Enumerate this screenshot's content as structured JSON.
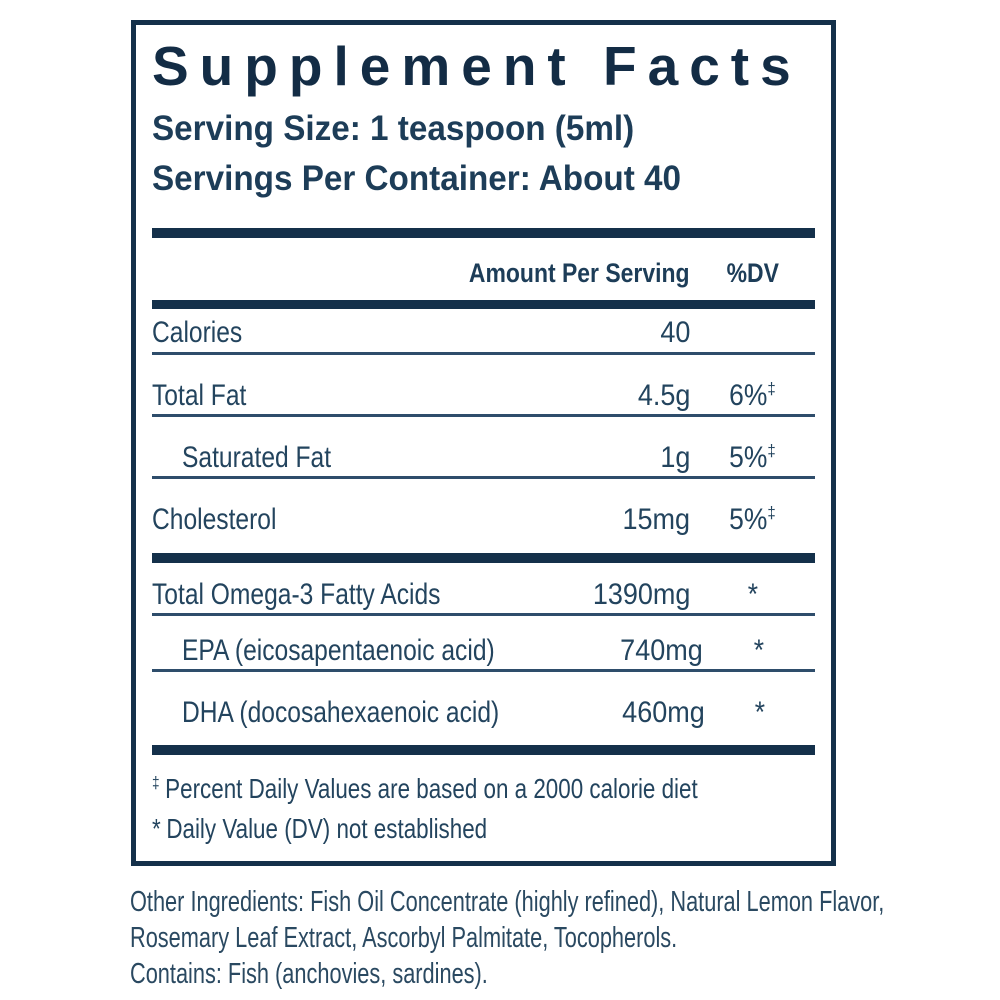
{
  "colors": {
    "ink": "#14304a",
    "text": "#23445e",
    "thin_rule": "#2e4d6b",
    "background": "#ffffff"
  },
  "label": {
    "title": "Supplement Facts",
    "serving_size": "Serving Size: 1 teaspoon (5ml)",
    "servings_per_container": "Servings Per Container: About 40",
    "columns": {
      "amount": "Amount Per Serving",
      "dv": "%DV"
    },
    "rows": [
      {
        "label": "Calories",
        "amount": "40",
        "dv": "",
        "sup": "",
        "indent": false,
        "section": 1
      },
      {
        "label": "Total Fat",
        "amount": "4.5g",
        "dv": "6%",
        "sup": "‡",
        "indent": false,
        "section": 1
      },
      {
        "label": "Saturated Fat",
        "amount": "1g",
        "dv": "5%",
        "sup": "‡",
        "indent": true,
        "section": 1
      },
      {
        "label": "Cholesterol",
        "amount": "15mg",
        "dv": "5%",
        "sup": "‡",
        "indent": false,
        "section": 1
      },
      {
        "label": "Total Omega-3 Fatty Acids",
        "amount": "1390mg",
        "dv": "*",
        "sup": "",
        "indent": false,
        "section": 2
      },
      {
        "label": "EPA (eicosapentaenoic acid)",
        "amount": "740mg",
        "dv": "*",
        "sup": "",
        "indent": true,
        "section": 2
      },
      {
        "label": "DHA (docosahexaenoic acid)",
        "amount": "460mg",
        "dv": "*",
        "sup": "",
        "indent": true,
        "section": 2
      }
    ],
    "footnotes": [
      {
        "mark": "‡",
        "text": "Percent Daily Values are based on a 2000 calorie diet"
      },
      {
        "mark": "*",
        "text": "Daily Value (DV) not established"
      }
    ]
  },
  "below": {
    "other_ingredients_lines": [
      "Other Ingredients: Fish Oil Concentrate (highly refined), Natural Lemon Flavor,",
      "Rosemary Leaf Extract, Ascorbyl Palmitate, Tocopherols."
    ],
    "contains": "Contains: Fish (anchovies, sardines)."
  }
}
